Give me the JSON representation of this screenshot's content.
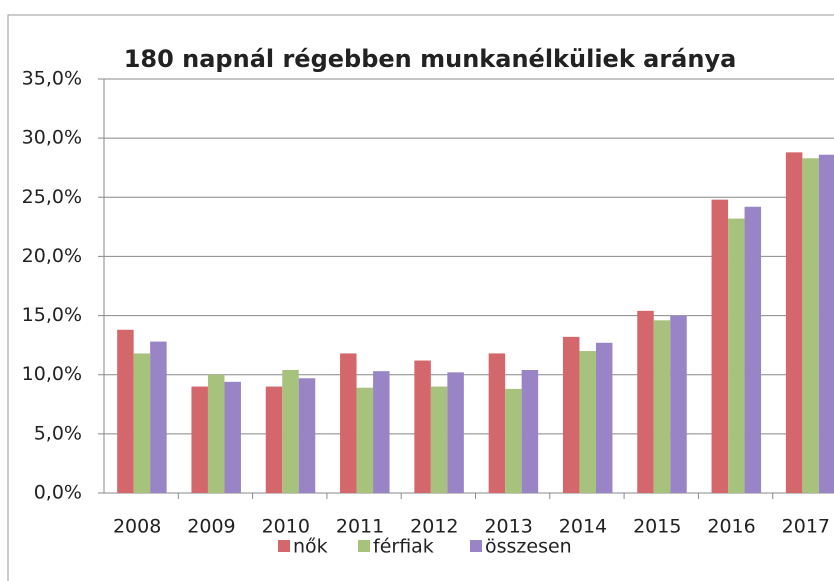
{
  "chart_data": {
    "type": "bar",
    "title": "180 napnál régebben munkanélküliek aránya",
    "categories": [
      "2008",
      "2009",
      "2010",
      "2011",
      "2012",
      "2013",
      "2014",
      "2015",
      "2016",
      "2017"
    ],
    "series": [
      {
        "name": "nők",
        "color": "#d4676b",
        "values": [
          13.8,
          9.0,
          9.0,
          11.8,
          11.2,
          11.8,
          13.2,
          15.4,
          24.8,
          28.8
        ]
      },
      {
        "name": "férfiak",
        "color": "#a7c27c",
        "values": [
          11.8,
          10.0,
          10.4,
          8.9,
          9.0,
          8.8,
          12.0,
          14.6,
          23.2,
          28.3
        ]
      },
      {
        "name": "összesen",
        "color": "#9985c6",
        "values": [
          12.8,
          9.4,
          9.7,
          10.3,
          10.2,
          10.4,
          12.7,
          15.0,
          24.2,
          28.6
        ]
      }
    ],
    "ylim": [
      0,
      35
    ],
    "yticks": [
      {
        "value": 0,
        "label": "0,0%"
      },
      {
        "value": 5,
        "label": "5,0%"
      },
      {
        "value": 10,
        "label": "10,0%"
      },
      {
        "value": 15,
        "label": "15,0%"
      },
      {
        "value": 20,
        "label": "20,0%"
      },
      {
        "value": 25,
        "label": "25,0%"
      },
      {
        "value": 30,
        "label": "30,0%"
      },
      {
        "value": 35,
        "label": "35,0%"
      }
    ],
    "grid": true,
    "legend": "bottom"
  }
}
